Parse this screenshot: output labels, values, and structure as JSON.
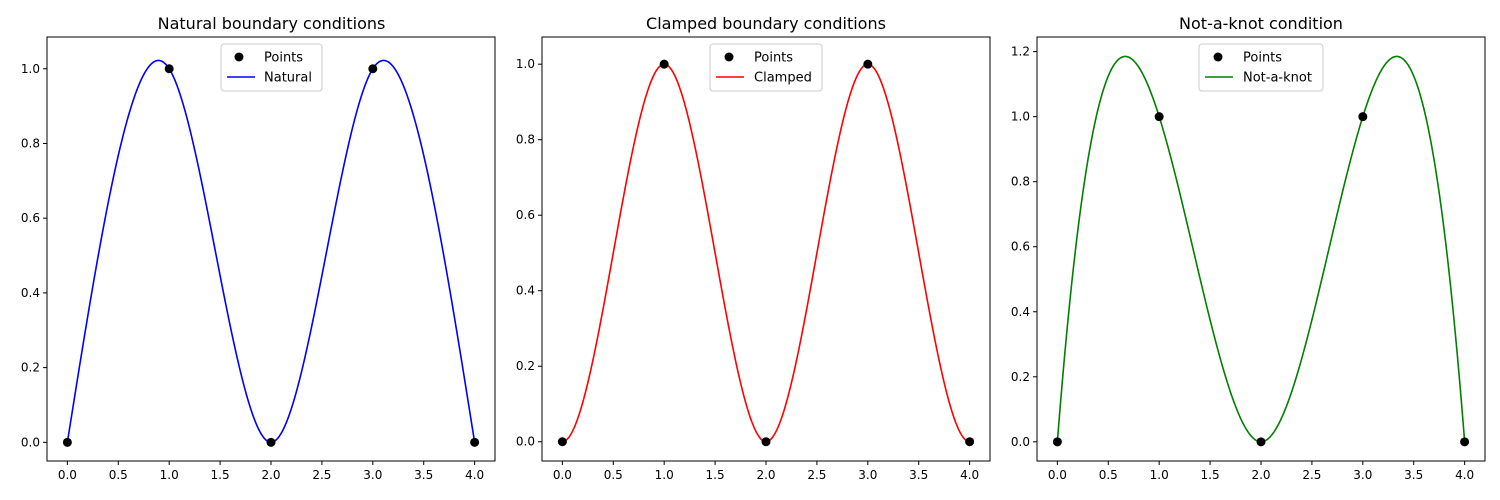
{
  "chart_data": [
    {
      "type": "line",
      "title": "Natural boundary conditions",
      "xlabel": "",
      "ylabel": "",
      "xlim": [
        -0.2,
        4.2
      ],
      "ylim": [
        -0.05,
        1.085
      ],
      "xticks": [
        0.0,
        0.5,
        1.0,
        1.5,
        2.0,
        2.5,
        3.0,
        3.5,
        4.0
      ],
      "yticks": [
        0.0,
        0.2,
        0.4,
        0.6,
        0.8,
        1.0
      ],
      "tick_format": "0.0",
      "grid": false,
      "legend_position": "top-center",
      "points": {
        "name": "Points",
        "color": "#000000",
        "x": [
          0,
          1,
          2,
          3,
          4
        ],
        "y": [
          0,
          1,
          0,
          1,
          0
        ]
      },
      "curve": {
        "name": "Natural",
        "color": "#0000ff",
        "boundary": "natural"
      }
    },
    {
      "type": "line",
      "title": "Clamped boundary conditions",
      "xlabel": "",
      "ylabel": "",
      "xlim": [
        -0.2,
        4.2
      ],
      "ylim": [
        -0.051,
        1.072
      ],
      "xticks": [
        0.0,
        0.5,
        1.0,
        1.5,
        2.0,
        2.5,
        3.0,
        3.5,
        4.0
      ],
      "yticks": [
        0.0,
        0.2,
        0.4,
        0.6,
        0.8,
        1.0
      ],
      "tick_format": "0.0",
      "grid": false,
      "legend_position": "top-center",
      "points": {
        "name": "Points",
        "color": "#000000",
        "x": [
          0,
          1,
          2,
          3,
          4
        ],
        "y": [
          0,
          1,
          0,
          1,
          0
        ]
      },
      "curve": {
        "name": "Clamped",
        "color": "#ff0000",
        "boundary": "clamped"
      }
    },
    {
      "type": "line",
      "title": "Not-a-knot condition",
      "xlabel": "",
      "ylabel": "",
      "xlim": [
        -0.2,
        4.2
      ],
      "ylim": [
        -0.059,
        1.245
      ],
      "xticks": [
        0.0,
        0.5,
        1.0,
        1.5,
        2.0,
        2.5,
        3.0,
        3.5,
        4.0
      ],
      "yticks": [
        0.0,
        0.2,
        0.4,
        0.6,
        0.8,
        1.0,
        1.2
      ],
      "tick_format": "0.0",
      "grid": false,
      "legend_position": "top-center",
      "points": {
        "name": "Points",
        "color": "#000000",
        "x": [
          0,
          1,
          2,
          3,
          4
        ],
        "y": [
          0,
          1,
          0,
          1,
          0
        ]
      },
      "curve": {
        "name": "Not-a-knot",
        "color": "#008000",
        "boundary": "not-a-knot"
      }
    }
  ]
}
